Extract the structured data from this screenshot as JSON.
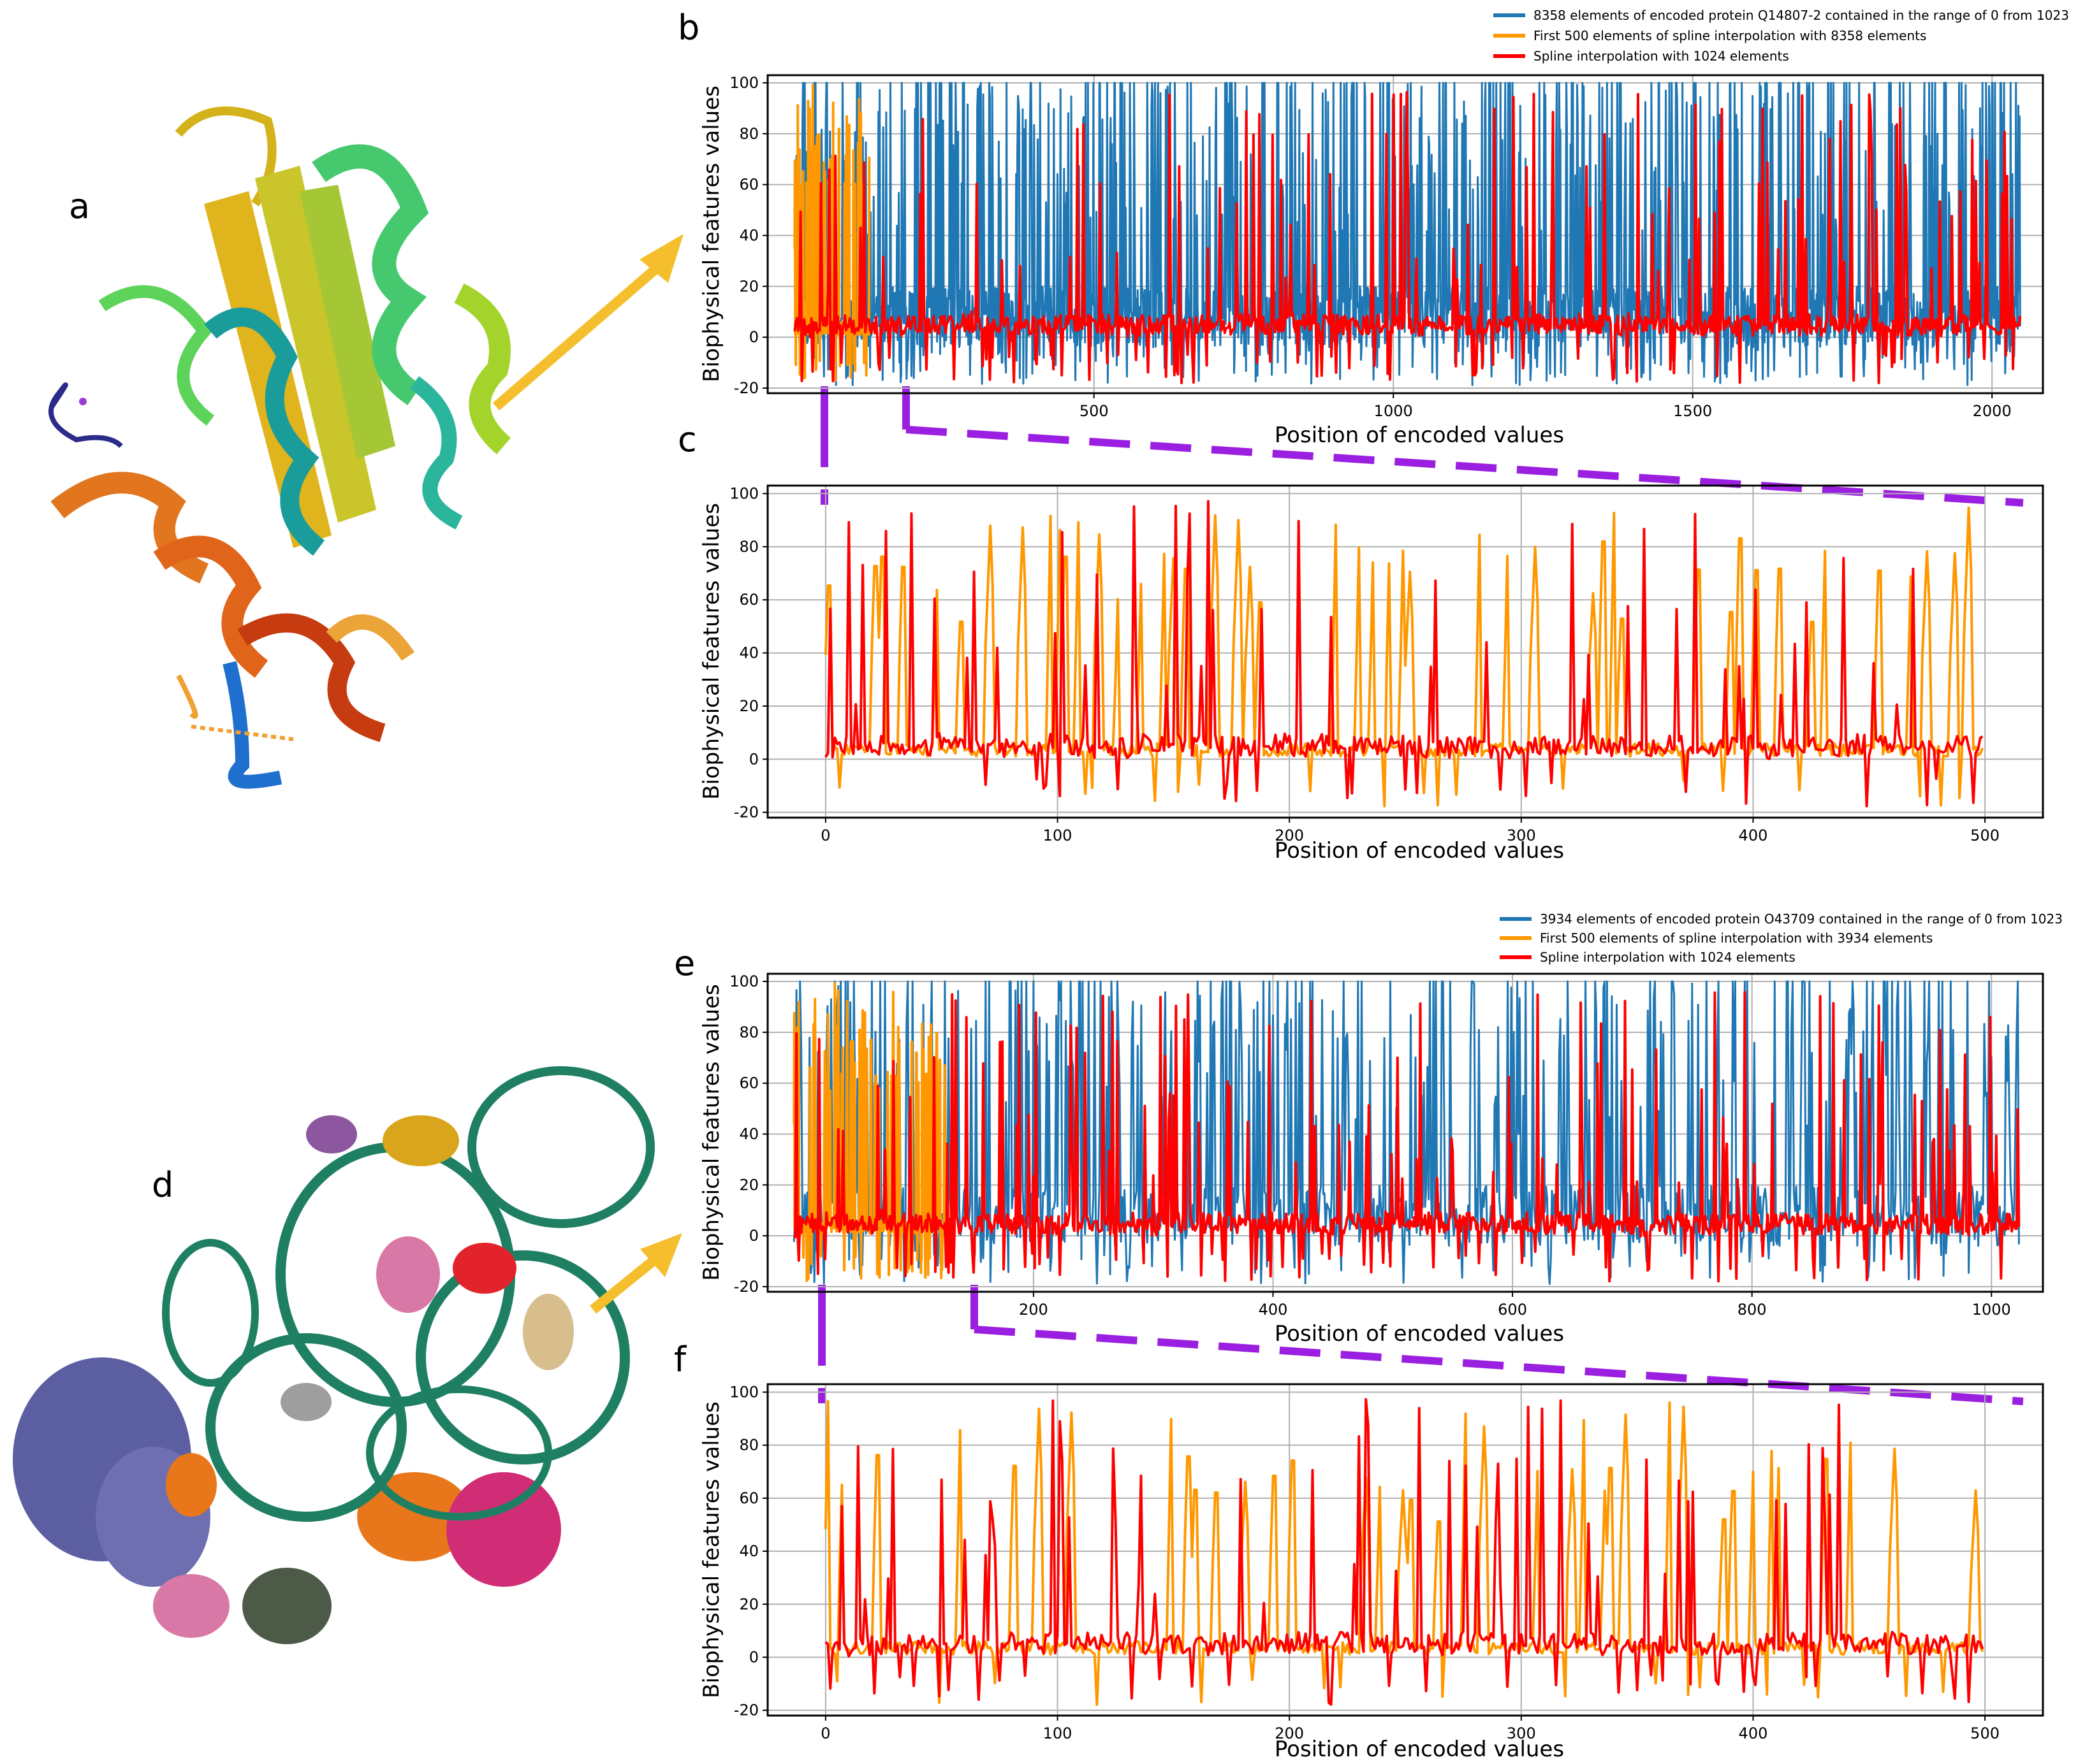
{
  "panel_letters": {
    "a": "a",
    "b": "b",
    "c": "c",
    "d": "d",
    "e": "e",
    "f": "f"
  },
  "colors": {
    "blue": "#1f77b4",
    "orange": "#ff9800",
    "red": "#ff0000",
    "purple": "#9b1fe0",
    "arrow": "#f5be2c",
    "grid": "#b0b0b0"
  },
  "icons": {
    "protein_top": "protein-ribbon-structure-icon",
    "protein_bottom": "protein-complex-structure-icon"
  },
  "chart_data": [
    {
      "id": "b",
      "type": "line",
      "xlabel": "Position of encoded values",
      "ylabel": "Biophysical features values",
      "xlim": [
        -45,
        2085
      ],
      "ylim": [
        -22,
        103
      ],
      "xticks": [
        500,
        1000,
        1500,
        2000
      ],
      "yticks": [
        -20,
        0,
        20,
        40,
        60,
        80,
        100
      ],
      "legend": [
        "8358 elements of encoded protein Q14807-2 contained in the range of 0 from 1023",
        "First 500 elements of spline interpolation with 8358 elements",
        "Spline interpolation with 1024 elements"
      ],
      "legend_position": "top-right",
      "series": [
        {
          "name": "8358 elements of encoded protein Q14807-2 contained in the range of 0 from 1023",
          "color": "blue",
          "n_points": 2048,
          "x_range": [
            0,
            2047
          ],
          "value_range": [
            -20,
            100
          ]
        },
        {
          "name": "First 500 elements of spline interpolation with 8358 elements",
          "color": "orange",
          "n_points": 500,
          "x_range": [
            0,
            125
          ],
          "value_range": [
            -20,
            100
          ]
        },
        {
          "name": "Spline interpolation with 1024 elements",
          "color": "red",
          "n_points": 1024,
          "x_range": [
            0,
            2047
          ],
          "value_range": [
            -19,
            98
          ]
        }
      ]
    },
    {
      "id": "c",
      "type": "line",
      "xlabel": "Position of encoded values",
      "ylabel": "Biophysical features values",
      "xlim": [
        -25,
        525
      ],
      "ylim": [
        -22,
        103
      ],
      "xticks": [
        0,
        100,
        200,
        300,
        400,
        500
      ],
      "yticks": [
        -20,
        0,
        20,
        40,
        60,
        80,
        100
      ],
      "series": [
        {
          "name": "First 500 elements of spline interpolation with 8358 elements",
          "color": "orange",
          "n_points": 500,
          "x_range": [
            0,
            499
          ],
          "value_range": [
            -20,
            100
          ]
        },
        {
          "name": "Spline interpolation with 1024 elements",
          "color": "red",
          "n_points": 500,
          "x_range": [
            0,
            499
          ],
          "value_range": [
            -19,
            98
          ]
        }
      ]
    },
    {
      "id": "e",
      "type": "line",
      "xlabel": "Position of encoded values",
      "ylabel": "Biophysical features values",
      "xlim": [
        -22,
        1043
      ],
      "ylim": [
        -22,
        103
      ],
      "xticks": [
        200,
        400,
        600,
        800,
        1000
      ],
      "yticks": [
        -20,
        0,
        20,
        40,
        60,
        80,
        100
      ],
      "legend": [
        "3934 elements of encoded protein O43709 contained in the range of 0 from 1023",
        "First 500 elements of spline interpolation with 3934 elements",
        "Spline interpolation with 1024 elements"
      ],
      "legend_position": "top-right",
      "series": [
        {
          "name": "3934 elements of encoded protein O43709 contained in the range of 0 from 1023",
          "color": "blue",
          "n_points": 1024,
          "x_range": [
            0,
            1023
          ],
          "value_range": [
            -20,
            100
          ]
        },
        {
          "name": "First 500 elements of spline interpolation with 3934 elements",
          "color": "orange",
          "n_points": 500,
          "x_range": [
            0,
            130
          ],
          "value_range": [
            -20,
            100
          ]
        },
        {
          "name": "Spline interpolation with 1024 elements",
          "color": "red",
          "n_points": 1024,
          "x_range": [
            0,
            1023
          ],
          "value_range": [
            -19,
            98
          ]
        }
      ]
    },
    {
      "id": "f",
      "type": "line",
      "xlabel": "Position of encoded values",
      "ylabel": "Biophysical features values",
      "xlim": [
        -25,
        525
      ],
      "ylim": [
        -22,
        103
      ],
      "xticks": [
        0,
        100,
        200,
        300,
        400,
        500
      ],
      "yticks": [
        -20,
        0,
        20,
        40,
        60,
        80,
        100
      ],
      "series": [
        {
          "name": "First 500 elements of spline interpolation with 3934 elements",
          "color": "orange",
          "n_points": 500,
          "x_range": [
            0,
            499
          ],
          "value_range": [
            -20,
            100
          ]
        },
        {
          "name": "Spline interpolation with 1024 elements",
          "color": "red",
          "n_points": 500,
          "x_range": [
            0,
            499
          ],
          "value_range": [
            -19,
            98
          ]
        }
      ]
    }
  ]
}
